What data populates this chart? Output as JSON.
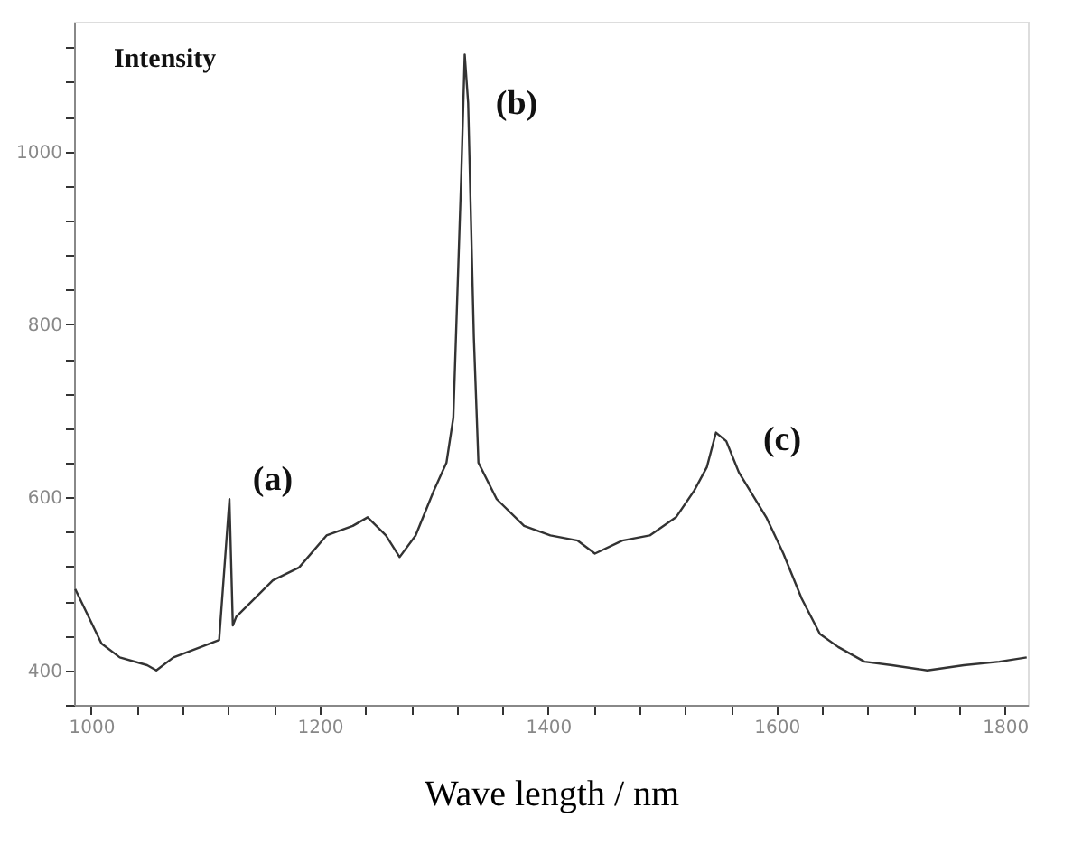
{
  "chart_data": {
    "type": "line",
    "xlabel": "Wave length / nm",
    "ylabel": "Intensity",
    "x": [
      986,
      1009,
      1025,
      1049,
      1057,
      1072,
      1096,
      1112,
      1121,
      1124,
      1127,
      1159,
      1182,
      1206,
      1229,
      1242,
      1258,
      1270,
      1284,
      1300,
      1311,
      1317,
      1324,
      1327,
      1330,
      1335,
      1339,
      1355,
      1379,
      1402,
      1426,
      1441,
      1465,
      1489,
      1512,
      1528,
      1539,
      1547,
      1556,
      1567,
      1591,
      1606,
      1622,
      1638,
      1654,
      1677,
      1701,
      1732,
      1764,
      1795,
      1819
    ],
    "series": [
      {
        "color": "#333333",
        "values": [
          494,
          431,
          415,
          406,
          400,
          415,
          427,
          435,
          598,
          452,
          462,
          504,
          519,
          556,
          567,
          577,
          556,
          531,
          556,
          608,
          640,
          692,
          973,
          1112,
          1056,
          785,
          640,
          598,
          567,
          556,
          550,
          535,
          550,
          556,
          577,
          608,
          635,
          675,
          665,
          629,
          577,
          535,
          483,
          442,
          427,
          410,
          406,
          400,
          406,
          410,
          415
        ]
      }
    ],
    "xlim": [
      985,
      1820
    ],
    "ylim": [
      360,
      1150
    ],
    "xticks": [
      1000,
      {
        "value": 1040,
        "label": null
      },
      {
        "value": 1080,
        "label": null
      },
      {
        "value": 1120,
        "label": null
      },
      {
        "value": 1160,
        "label": null
      },
      1200,
      {
        "value": 1240,
        "label": null
      },
      {
        "value": 1280,
        "label": null
      },
      {
        "value": 1320,
        "label": null
      },
      {
        "value": 1360,
        "label": null
      },
      1400,
      {
        "value": 1440,
        "label": null
      },
      {
        "value": 1480,
        "label": null
      },
      {
        "value": 1520,
        "label": null
      },
      {
        "value": 1560,
        "label": null
      },
      1600,
      {
        "value": 1640,
        "label": null
      },
      {
        "value": 1680,
        "label": null
      },
      {
        "value": 1720,
        "label": null
      },
      {
        "value": 1760,
        "label": null
      },
      1800
    ],
    "yticks": [
      {
        "value": 360,
        "label": null
      },
      400,
      {
        "value": 440,
        "label": null
      },
      {
        "value": 480,
        "label": null
      },
      {
        "value": 520,
        "label": null
      },
      {
        "value": 560,
        "label": null
      },
      600,
      {
        "value": 640,
        "label": null
      },
      {
        "value": 680,
        "label": null
      },
      {
        "value": 720,
        "label": null
      },
      {
        "value": 760,
        "label": null
      },
      800,
      {
        "value": 840,
        "label": null
      },
      {
        "value": 880,
        "label": null
      },
      {
        "value": 920,
        "label": null
      },
      {
        "value": 960,
        "label": null
      },
      1000,
      {
        "value": 1040,
        "label": null
      },
      {
        "value": 1080,
        "label": null
      },
      {
        "value": 1120,
        "label": null
      }
    ],
    "annotations": [
      "(a)",
      "(b)",
      "(c)"
    ],
    "grid": false,
    "marker": "none",
    "line_style": "solid"
  }
}
